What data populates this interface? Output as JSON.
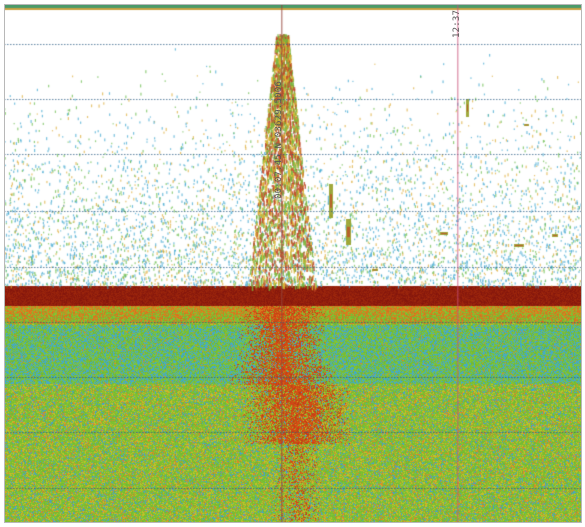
{
  "echogram": {
    "fix_label": "00:07:45 N 03629.5006",
    "time_label": "12:37",
    "colors": {
      "background": "#ffffff",
      "seabed": "#8b1c10",
      "water_green": "#6fbf3a",
      "water_cyan": "#3aa7c4",
      "plume": "#b8401a",
      "gridline": "#2a6080",
      "marker_line": "#c05070"
    }
  }
}
